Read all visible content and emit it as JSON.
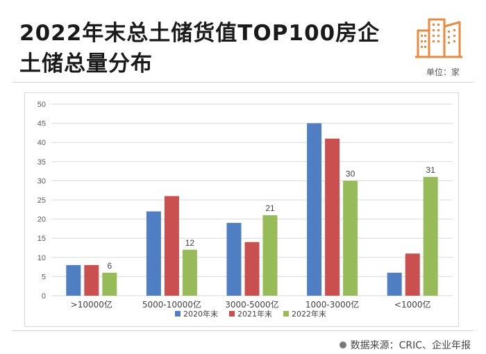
{
  "header": {
    "title_line1": "2022年末总土储货值TOP100房企",
    "title_line2": "土储总量分布",
    "unit": "单位：家"
  },
  "footer": {
    "source": "数据来源：CRIC、企业年报"
  },
  "colors": {
    "series": [
      "#4f7fc2",
      "#c9504f",
      "#98bb59"
    ],
    "logo": "#e88a3d"
  },
  "chart_data": {
    "type": "bar",
    "title": "",
    "xlabel": "",
    "ylabel": "",
    "ylim": [
      0,
      50
    ],
    "yticks": [
      0,
      5,
      10,
      15,
      20,
      25,
      30,
      35,
      40,
      45,
      50
    ],
    "grid": true,
    "legend_position": "bottom",
    "categories": [
      ">10000亿",
      "5000-10000亿",
      "3000-5000亿",
      "1000-3000亿",
      "<1000亿"
    ],
    "series": [
      {
        "name": "2020年末",
        "values": [
          8,
          22,
          19,
          45,
          6
        ]
      },
      {
        "name": "2021年末",
        "values": [
          8,
          26,
          14,
          41,
          11
        ]
      },
      {
        "name": "2022年末",
        "values": [
          6,
          12,
          21,
          30,
          31
        ]
      }
    ],
    "data_labels": {
      "series_index": 2,
      "values": [
        "6",
        "12",
        "21",
        "30",
        "31"
      ]
    }
  }
}
